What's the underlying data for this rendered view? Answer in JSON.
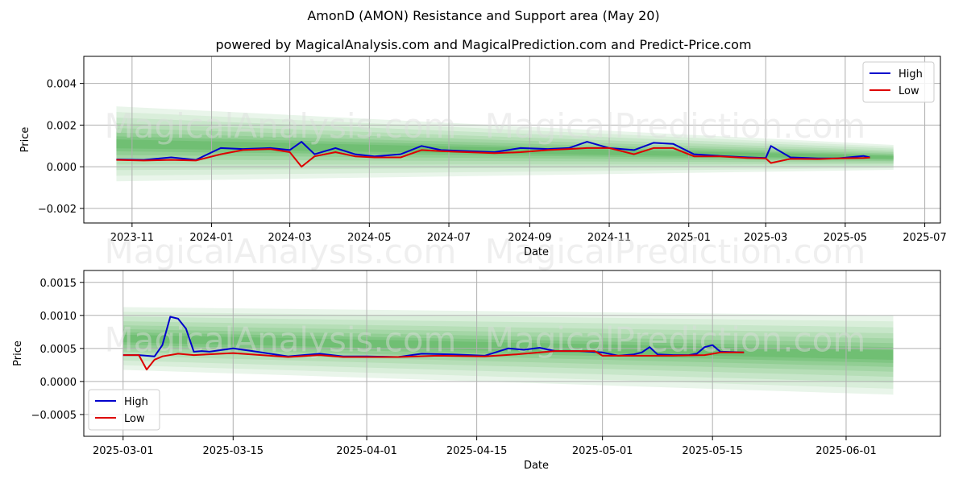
{
  "title": "AmonD (AMON) Resistance and Support area (May 20)",
  "subtitle": "powered by MagicalAnalysis.com and MagicalPrediction.com and Predict-Price.com",
  "watermarks": [
    "MagicalAnalysis.com",
    "MagicalPrediction.com"
  ],
  "colors": {
    "high": "#0000cc",
    "low": "#dd0000",
    "band": "#4caf50"
  },
  "chart_data": [
    {
      "type": "line",
      "xlabel": "Date",
      "ylabel": "Price",
      "xlim": [
        "2023-09-25",
        "2025-07-13"
      ],
      "ylim": [
        -0.0027,
        0.0053
      ],
      "x_ticks": [
        "2023-11",
        "2024-01",
        "2024-03",
        "2024-05",
        "2024-07",
        "2024-09",
        "2024-11",
        "2025-01",
        "2025-03",
        "2025-05",
        "2025-07"
      ],
      "y_ticks": [
        -0.002,
        0.0,
        0.002,
        0.004
      ],
      "y_tick_labels": [
        "−0.002",
        "0.000",
        "0.002",
        "0.004"
      ],
      "grid": true,
      "legend": {
        "position": "top-right",
        "entries": [
          "High",
          "Low"
        ]
      },
      "band_region": {
        "x_start": "2023-10-20",
        "x_end": "2025-06-07",
        "start": {
          "center": 0.0011,
          "spread": 0.0036
        },
        "end": {
          "center": 0.00045,
          "spread": 0.0012
        }
      },
      "series": [
        {
          "name": "High",
          "x": [
            "2023-10-20",
            "2023-11-10",
            "2023-12-01",
            "2023-12-20",
            "2024-01-08",
            "2024-01-25",
            "2024-02-15",
            "2024-03-01",
            "2024-03-10",
            "2024-03-20",
            "2024-04-05",
            "2024-04-20",
            "2024-05-05",
            "2024-05-25",
            "2024-06-10",
            "2024-06-25",
            "2024-07-15",
            "2024-08-05",
            "2024-08-25",
            "2024-09-15",
            "2024-10-01",
            "2024-10-15",
            "2024-11-01",
            "2024-11-20",
            "2024-12-05",
            "2024-12-20",
            "2025-01-05",
            "2025-01-25",
            "2025-02-15",
            "2025-03-01",
            "2025-03-05",
            "2025-03-20",
            "2025-04-10",
            "2025-04-25",
            "2025-05-15",
            "2025-05-20"
          ],
          "values": [
            0.00035,
            0.00033,
            0.00045,
            0.00033,
            0.0009,
            0.00085,
            0.0009,
            0.0008,
            0.0012,
            0.0006,
            0.0009,
            0.0006,
            0.0005,
            0.0006,
            0.001,
            0.0008,
            0.00075,
            0.0007,
            0.0009,
            0.00085,
            0.0009,
            0.0012,
            0.0009,
            0.0008,
            0.00115,
            0.0011,
            0.0006,
            0.00052,
            0.00045,
            0.00042,
            0.001,
            0.00045,
            0.0004,
            0.0004,
            0.00052,
            0.00045
          ]
        },
        {
          "name": "Low",
          "x": [
            "2023-10-20",
            "2023-11-10",
            "2023-12-01",
            "2023-12-20",
            "2024-01-08",
            "2024-01-25",
            "2024-02-15",
            "2024-03-01",
            "2024-03-10",
            "2024-03-20",
            "2024-04-05",
            "2024-04-20",
            "2024-05-05",
            "2024-05-25",
            "2024-06-10",
            "2024-06-25",
            "2024-07-15",
            "2024-08-05",
            "2024-08-25",
            "2024-09-15",
            "2024-10-01",
            "2024-10-15",
            "2024-11-01",
            "2024-11-20",
            "2024-12-05",
            "2024-12-20",
            "2025-01-05",
            "2025-01-25",
            "2025-02-15",
            "2025-03-01",
            "2025-03-05",
            "2025-03-20",
            "2025-04-10",
            "2025-04-25",
            "2025-05-15",
            "2025-05-20"
          ],
          "values": [
            0.00033,
            0.0003,
            0.00033,
            0.0003,
            0.0006,
            0.0008,
            0.00085,
            0.0007,
            0.0,
            0.0005,
            0.0007,
            0.0005,
            0.00045,
            0.00045,
            0.0008,
            0.00075,
            0.0007,
            0.00065,
            0.0007,
            0.0008,
            0.00085,
            0.0009,
            0.0009,
            0.0006,
            0.0009,
            0.0009,
            0.0005,
            0.0005,
            0.00042,
            0.0004,
            0.00018,
            0.00038,
            0.00037,
            0.0004,
            0.00042,
            0.00044
          ]
        }
      ]
    },
    {
      "type": "line",
      "xlabel": "Date",
      "ylabel": "Price",
      "xlim": [
        "2025-02-24",
        "2025-06-13"
      ],
      "ylim": [
        -0.00083,
        0.00168
      ],
      "x_ticks": [
        "2025-03-01",
        "2025-03-15",
        "2025-04-01",
        "2025-04-15",
        "2025-05-01",
        "2025-05-15",
        "2025-06-01"
      ],
      "y_ticks": [
        -0.0005,
        0.0,
        0.0005,
        0.001,
        0.0015
      ],
      "y_tick_labels": [
        "−0.0005",
        "0.0000",
        "0.0005",
        "0.0010",
        "0.0015"
      ],
      "grid": true,
      "legend": {
        "position": "bottom-left",
        "entries": [
          "High",
          "Low"
        ]
      },
      "band_region": {
        "x_start": "2025-03-01",
        "x_end": "2025-06-07",
        "start": {
          "center": 0.00065,
          "spread": 0.00095
        },
        "end": {
          "center": 0.0004,
          "spread": 0.0012
        }
      },
      "series": [
        {
          "name": "High",
          "x": [
            "2025-03-01",
            "2025-03-03",
            "2025-03-05",
            "2025-03-06",
            "2025-03-07",
            "2025-03-08",
            "2025-03-09",
            "2025-03-10",
            "2025-03-11",
            "2025-03-12",
            "2025-03-15",
            "2025-03-18",
            "2025-03-22",
            "2025-03-26",
            "2025-03-29",
            "2025-04-01",
            "2025-04-05",
            "2025-04-08",
            "2025-04-12",
            "2025-04-16",
            "2025-04-19",
            "2025-04-21",
            "2025-04-23",
            "2025-04-25",
            "2025-04-28",
            "2025-05-01",
            "2025-05-03",
            "2025-05-05",
            "2025-05-06",
            "2025-05-07",
            "2025-05-08",
            "2025-05-10",
            "2025-05-12",
            "2025-05-13",
            "2025-05-14",
            "2025-05-15",
            "2025-05-16",
            "2025-05-19"
          ],
          "values": [
            0.0004,
            0.0004,
            0.00038,
            0.00055,
            0.00098,
            0.00095,
            0.0008,
            0.00045,
            0.00046,
            0.00045,
            0.0005,
            0.00045,
            0.00038,
            0.00042,
            0.00038,
            0.00038,
            0.00037,
            0.00042,
            0.00041,
            0.00039,
            0.0005,
            0.00048,
            0.00051,
            0.00046,
            0.00046,
            0.00044,
            0.00039,
            0.00041,
            0.00044,
            0.00052,
            0.00041,
            0.0004,
            0.0004,
            0.00042,
            0.00052,
            0.00055,
            0.00045,
            0.00044
          ]
        },
        {
          "name": "Low",
          "x": [
            "2025-03-01",
            "2025-03-03",
            "2025-03-04",
            "2025-03-05",
            "2025-03-06",
            "2025-03-08",
            "2025-03-10",
            "2025-03-15",
            "2025-03-22",
            "2025-03-26",
            "2025-03-29",
            "2025-04-01",
            "2025-04-05",
            "2025-04-10",
            "2025-04-16",
            "2025-04-20",
            "2025-04-25",
            "2025-04-30",
            "2025-05-01",
            "2025-05-05",
            "2025-05-10",
            "2025-05-14",
            "2025-05-16",
            "2025-05-19"
          ],
          "values": [
            0.0004,
            0.0004,
            0.00018,
            0.00033,
            0.00038,
            0.00042,
            0.0004,
            0.00043,
            0.00037,
            0.0004,
            0.00037,
            0.00037,
            0.00037,
            0.00039,
            0.00038,
            0.00041,
            0.00046,
            0.00046,
            0.00039,
            0.00039,
            0.00039,
            0.0004,
            0.00044,
            0.00044
          ]
        }
      ]
    }
  ]
}
